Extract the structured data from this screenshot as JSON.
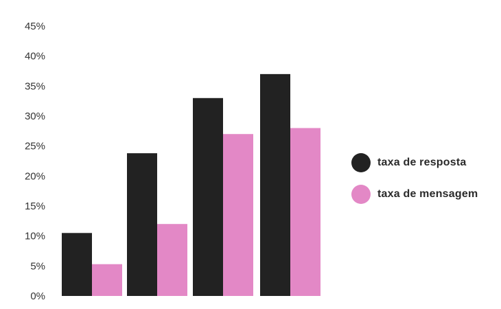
{
  "chart_data": {
    "type": "bar",
    "categories": [
      "",
      "",
      "",
      ""
    ],
    "series": [
      {
        "name": "taxa de resposta",
        "color": "#222222",
        "values": [
          10.5,
          23.8,
          33.0,
          37.0
        ]
      },
      {
        "name": "taxa de mensagem",
        "color": "#e388c6",
        "values": [
          5.3,
          12.0,
          27.0,
          28.0
        ]
      }
    ],
    "yticks": [
      "0%",
      "5%",
      "10%",
      "15%",
      "20%",
      "25%",
      "30%",
      "35%",
      "40%",
      "45%"
    ],
    "ylim": [
      0,
      45
    ],
    "title": "",
    "xlabel": "",
    "ylabel": "",
    "grid": false,
    "legend_position": "right"
  }
}
